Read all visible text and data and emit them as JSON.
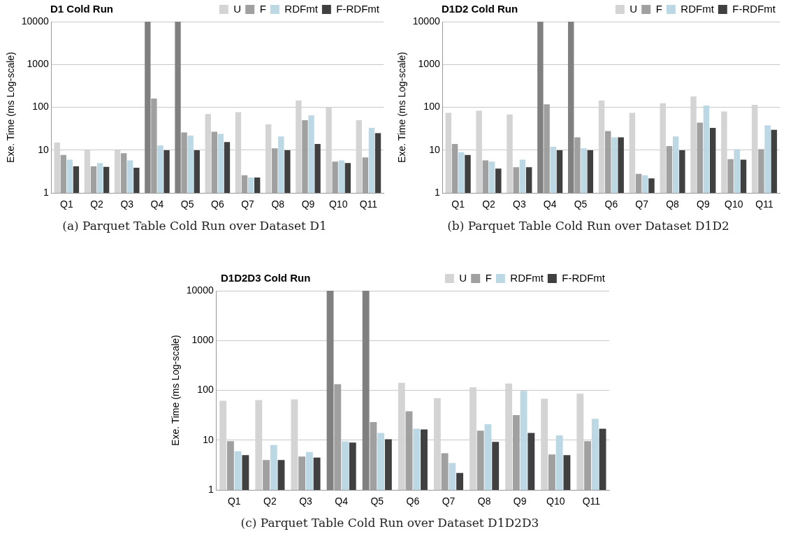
{
  "chart_data": [
    {
      "type": "bar",
      "title": "D1 Cold Run",
      "ylabel": "Exe. Time (ms Log-scale)",
      "categories": [
        "Q1",
        "Q2",
        "Q3",
        "Q4",
        "Q5",
        "Q6",
        "Q7",
        "Q8",
        "Q9",
        "Q10",
        "Q11"
      ],
      "series": [
        {
          "name": "U",
          "color": "#d4d4d4",
          "colors": [
            "#d4d4d4",
            "#d4d4d4",
            "#d4d4d4",
            "#808080",
            "#808080",
            "#d4d4d4",
            "#d4d4d4",
            "#d4d4d4",
            "#d4d4d4",
            "#d4d4d4",
            "#d4d4d4"
          ],
          "values": [
            15,
            10,
            10,
            10000,
            10000,
            70,
            77,
            40,
            145,
            100,
            50
          ]
        },
        {
          "name": "F",
          "color": "#a0a0a0",
          "values": [
            7.7,
            4.2,
            8.5,
            160,
            26,
            27,
            2.6,
            11,
            50,
            5.4,
            6.8
          ]
        },
        {
          "name": "RDFmt",
          "color": "#bcd8e4",
          "values": [
            6,
            5,
            5.8,
            13,
            22,
            24,
            2.3,
            21,
            65,
            5.8,
            33
          ]
        },
        {
          "name": "F-RDFmt",
          "color": "#404040",
          "values": [
            4.2,
            4.1,
            3.9,
            10,
            10,
            15.5,
            2.3,
            10,
            14,
            5,
            25
          ]
        }
      ],
      "log": "y",
      "ylim": [
        1,
        10000
      ],
      "yticks": [
        1,
        10,
        100,
        1000,
        10000
      ],
      "grid": "y",
      "legend": "top right",
      "annotations": [
        "(a) Parquet Table Cold Run over Dataset D1"
      ]
    },
    {
      "type": "bar",
      "title": "D1D2 Cold Run",
      "ylabel": "Exe. Time (ms Log-scale)",
      "categories": [
        "Q1",
        "Q2",
        "Q3",
        "Q4",
        "Q5",
        "Q6",
        "Q7",
        "Q8",
        "Q9",
        "Q10",
        "Q11"
      ],
      "series": [
        {
          "name": "U",
          "color": "#d4d4d4",
          "colors": [
            "#d4d4d4",
            "#d4d4d4",
            "#d4d4d4",
            "#808080",
            "#808080",
            "#d4d4d4",
            "#d4d4d4",
            "#d4d4d4",
            "#d4d4d4",
            "#d4d4d4",
            "#d4d4d4"
          ],
          "values": [
            74,
            83,
            68,
            10000,
            10000,
            145,
            74,
            125,
            180,
            80,
            115
          ]
        },
        {
          "name": "F",
          "color": "#a0a0a0",
          "values": [
            14,
            5.8,
            4,
            118,
            20,
            28,
            2.8,
            12.5,
            44,
            6.2,
            10.5
          ]
        },
        {
          "name": "RDFmt",
          "color": "#bcd8e4",
          "values": [
            9,
            5.4,
            6,
            12,
            11,
            20,
            2.6,
            21,
            110,
            10.5,
            38
          ]
        },
        {
          "name": "F-RDFmt",
          "color": "#404040",
          "values": [
            7.7,
            3.7,
            4,
            10,
            10,
            20,
            2.2,
            10,
            33,
            6,
            30
          ]
        }
      ],
      "log": "y",
      "ylim": [
        1,
        10000
      ],
      "yticks": [
        1,
        10,
        100,
        1000,
        10000
      ],
      "grid": "y",
      "legend": "top right",
      "annotations": [
        "(b) Parquet Table Cold Run over Dataset D1D2"
      ]
    },
    {
      "type": "bar",
      "title": "D1D2D3 Cold Run",
      "ylabel": "Exe. Time (ms Log-scale)",
      "categories": [
        "Q1",
        "Q2",
        "Q3",
        "Q4",
        "Q5",
        "Q6",
        "Q7",
        "Q8",
        "Q9",
        "Q10",
        "Q11"
      ],
      "series": [
        {
          "name": "U",
          "color": "#d4d4d4",
          "colors": [
            "#d4d4d4",
            "#d4d4d4",
            "#d4d4d4",
            "#808080",
            "#808080",
            "#d4d4d4",
            "#d4d4d4",
            "#d4d4d4",
            "#d4d4d4",
            "#d4d4d4",
            "#d4d4d4"
          ],
          "values": [
            62,
            64,
            66,
            10000,
            10000,
            142,
            70,
            115,
            137,
            68,
            86
          ]
        },
        {
          "name": "F",
          "color": "#a0a0a0",
          "values": [
            9.6,
            4,
            4.7,
            133,
            23,
            38,
            5.5,
            15.5,
            32,
            5.2,
            9.6
          ]
        },
        {
          "name": "RDFmt",
          "color": "#bcd8e4",
          "values": [
            6,
            8,
            5.8,
            9.5,
            14,
            17,
            3.5,
            21,
            98,
            12.5,
            27
          ]
        },
        {
          "name": "F-RDFmt",
          "color": "#404040",
          "values": [
            5,
            4,
            4.5,
            9,
            10.5,
            16.5,
            2.2,
            9.3,
            14,
            5,
            17
          ]
        }
      ],
      "log": "y",
      "ylim": [
        1,
        10000
      ],
      "yticks": [
        1,
        10,
        100,
        1000,
        10000
      ],
      "grid": "y",
      "legend": "top right",
      "annotations": [
        "(c) Parquet Table Cold Run over Dataset D1D2D3"
      ]
    }
  ]
}
